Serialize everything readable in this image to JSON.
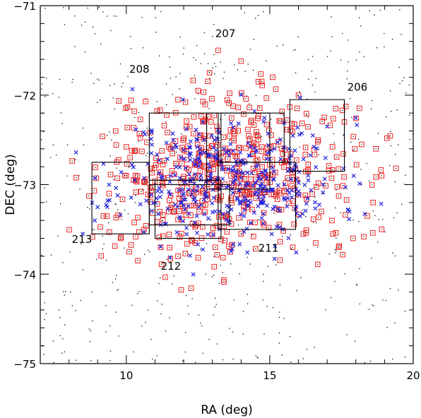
{
  "chart_data": {
    "type": "scatter",
    "xlabel": "RA (deg)",
    "ylabel": "DEC (deg)",
    "xlim": [
      7,
      20
    ],
    "ylim": [
      -75,
      -71
    ],
    "y_inverted": true,
    "x_ticks": [
      10,
      15,
      20
    ],
    "x_tick_labels": [
      "10",
      "15",
      "20"
    ],
    "y_ticks": [
      -71,
      -72,
      -73,
      -74,
      -75
    ],
    "y_tick_labels": [
      "-71",
      "-72",
      "-73",
      "-74",
      "-75"
    ],
    "colors": {
      "frame": "#000000",
      "squares": "#ee2222",
      "crosses": "#2222dd",
      "background_dots": "#000000",
      "field_boxes": "#000000"
    },
    "series": [
      {
        "marker": "square",
        "color": "#ee2222",
        "description_points": "dense cloud centered near RA 13.5, DEC -72.9",
        "points": [
          [
            13.2,
            -71.5
          ],
          [
            14.0,
            -71.62
          ],
          [
            12.9,
            -71.75
          ],
          [
            14.6,
            -71.85
          ],
          [
            15.1,
            -71.8
          ],
          [
            12.5,
            -71.95
          ],
          [
            13.6,
            -71.98
          ],
          [
            11.8,
            -72.05
          ],
          [
            16.0,
            -72.0
          ],
          [
            16.9,
            -72.25
          ],
          [
            17.6,
            -72.3
          ],
          [
            18.2,
            -72.55
          ],
          [
            18.7,
            -72.6
          ],
          [
            18.9,
            -72.9
          ],
          [
            18.6,
            -73.2
          ],
          [
            18.4,
            -73.35
          ],
          [
            18.9,
            -73.5
          ],
          [
            17.9,
            -73.6
          ],
          [
            17.2,
            -73.55
          ],
          [
            16.8,
            -73.3
          ],
          [
            10.1,
            -73.75
          ],
          [
            10.4,
            -73.85
          ],
          [
            9.8,
            -73.6
          ],
          [
            11.2,
            -73.7
          ],
          [
            11.8,
            -73.8
          ],
          [
            12.4,
            -73.65
          ],
          [
            13.1,
            -73.7
          ],
          [
            14.0,
            -73.55
          ],
          [
            14.8,
            -73.45
          ],
          [
            15.8,
            -73.7
          ],
          [
            16.6,
            -73.65
          ],
          [
            17.4,
            -73.7
          ],
          [
            9.4,
            -73.1
          ],
          [
            9.2,
            -73.35
          ],
          [
            10.0,
            -72.9
          ]
        ],
        "cloud_seed": 7,
        "cloud_count": 560,
        "cloud_center": [
          13.5,
          -72.9
        ],
        "cloud_spread": [
          2.2,
          0.45
        ]
      },
      {
        "marker": "cross",
        "color": "#2222dd",
        "points": [
          [
            9.0,
            -73.25
          ],
          [
            8.9,
            -73.4
          ],
          [
            9.4,
            -73.0
          ],
          [
            13.4,
            -72.6
          ],
          [
            14.0,
            -72.75
          ],
          [
            17.0,
            -72.35
          ],
          [
            16.5,
            -72.45
          ],
          [
            12.0,
            -73.1
          ],
          [
            12.6,
            -72.9
          ],
          [
            13.1,
            -73.3
          ]
        ],
        "cloud_seed": 11,
        "cloud_count": 420,
        "cloud_center": [
          13.6,
          -72.95
        ],
        "cloud_spread": [
          1.9,
          0.35
        ]
      },
      {
        "marker": "dot",
        "color": "#000000",
        "points": [],
        "cloud_seed": 3,
        "cloud_count": 520,
        "uniform": true
      }
    ],
    "fields": [
      {
        "label": "206",
        "ra": [
          15.7,
          17.6
        ],
        "dec": [
          -72.05,
          -72.85
        ],
        "label_at": [
          17.7,
          -71.95
        ]
      },
      {
        "label": "207",
        "ra": [
          13.3,
          15.5
        ],
        "dec": [
          -72.2,
          -72.75
        ],
        "label_at": [
          13.1,
          -71.35
        ]
      },
      {
        "label": "208",
        "ra": [
          10.8,
          13.2
        ],
        "dec": [
          -72.2,
          -72.95
        ],
        "label_at": [
          10.1,
          -71.75
        ]
      },
      {
        "label": "211",
        "ra": [
          13.2,
          15.9
        ],
        "dec": [
          -72.75,
          -73.5
        ],
        "label_at": [
          14.6,
          -73.75
        ]
      },
      {
        "label": "212",
        "ra": [
          11.0,
          13.3
        ],
        "dec": [
          -72.95,
          -73.6
        ],
        "label_at": [
          11.2,
          -73.95
        ]
      },
      {
        "label": "213",
        "ra": [
          8.8,
          10.8
        ],
        "dec": [
          -72.75,
          -73.55
        ],
        "label_at": [
          8.1,
          -73.65
        ]
      }
    ],
    "extra_boxes": [
      {
        "ra": [
          10.8,
          13.6
        ],
        "dec": [
          -73.0,
          -73.45
        ]
      },
      {
        "ra": [
          12.8,
          15.0
        ],
        "dec": [
          -72.2,
          -73.05
        ]
      }
    ]
  }
}
